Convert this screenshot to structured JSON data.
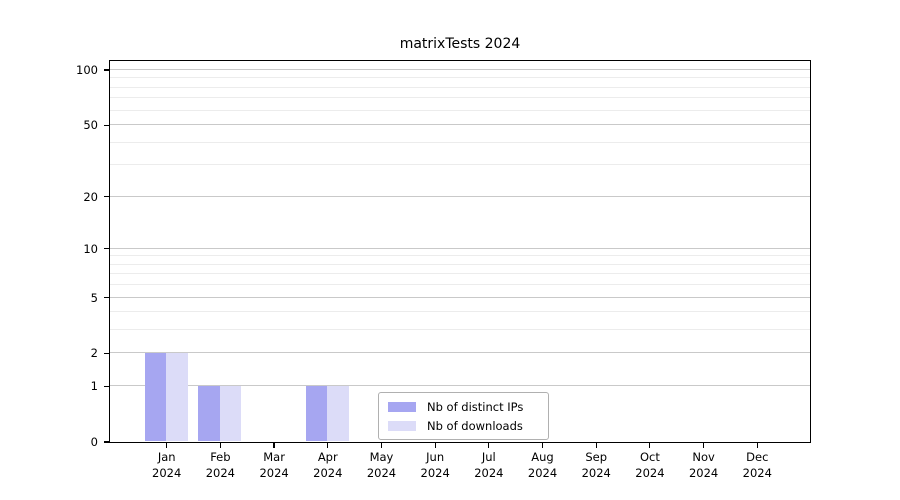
{
  "title": "matrixTests 2024",
  "colors": {
    "background": "#ffffff",
    "spine": "#000000",
    "text": "#000000",
    "major_grid": "#c9c9c9",
    "minor_grid": "#ececec",
    "legend_border": "#b0b0b0",
    "series_distinct_ips": "#a6a6f1",
    "series_downloads": "#dcdcf8"
  },
  "chart_data": {
    "type": "bar",
    "title": "matrixTests 2024",
    "categories": [
      "Jan",
      "Feb",
      "Mar",
      "Apr",
      "May",
      "Jun",
      "Jul",
      "Aug",
      "Sep",
      "Oct",
      "Nov",
      "Dec"
    ],
    "x_tick_year": "2024",
    "series": [
      {
        "name": "Nb of distinct IPs",
        "color": "#a6a6f1",
        "values": [
          2,
          1,
          0,
          1,
          0,
          0,
          0,
          0,
          0,
          0,
          0,
          0
        ]
      },
      {
        "name": "Nb of downloads",
        "color": "#dcdcf8",
        "values": [
          2,
          1,
          0,
          1,
          0,
          0,
          0,
          0,
          0,
          0,
          0,
          0
        ]
      }
    ],
    "y_scale": "log1p",
    "ylim": [
      0,
      112
    ],
    "y_major_ticks": [
      0,
      1,
      2,
      5,
      10,
      20,
      50,
      100
    ],
    "y_minor_gridlines": [
      3,
      4,
      6,
      7,
      8,
      9,
      30,
      40,
      60,
      70,
      80,
      90
    ],
    "grid": true,
    "legend_position": "inside-bottom-center"
  }
}
